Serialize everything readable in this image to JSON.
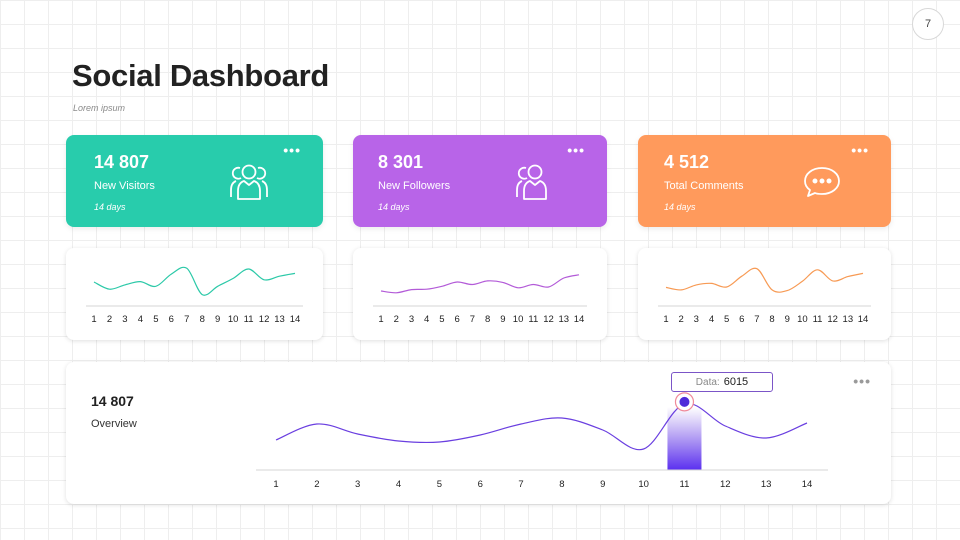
{
  "page_number": "7",
  "title": "Social Dashboard",
  "subtitle": "Lorem ipsum",
  "stat_cards": [
    {
      "value": "14 807",
      "label": "New Visitors",
      "period": "14 days",
      "color": "#28ccac",
      "icon": "users-icon"
    },
    {
      "value": "8 301",
      "label": "New Followers",
      "period": "14 days",
      "color": "#b864e8",
      "icon": "users-icon"
    },
    {
      "value": "4 512",
      "label": "Total Comments",
      "period": "14 days",
      "color": "#ff9a5c",
      "icon": "chat-bubble-icon"
    }
  ],
  "menu_glyph": "•••",
  "overview": {
    "value": "14 807",
    "label": "Overview",
    "tooltip_label": "Data:",
    "tooltip_value": "6015",
    "highlight_index": 11,
    "line_color": "#6a3fe0"
  },
  "chart_data": [
    {
      "type": "line",
      "name": "visitors-sparkline",
      "color": "#2cc9a8",
      "x": [
        1,
        2,
        3,
        4,
        5,
        6,
        7,
        8,
        9,
        10,
        11,
        12,
        13,
        14
      ],
      "values": [
        5,
        3,
        4.2,
        5.1,
        3.8,
        7.2,
        8.8,
        1.5,
        3.8,
        6,
        8.6,
        5.6,
        6.6,
        7.4
      ],
      "ylim": [
        0,
        10
      ]
    },
    {
      "type": "line",
      "name": "followers-sparkline",
      "color": "#b35bd8",
      "x": [
        1,
        2,
        3,
        4,
        5,
        6,
        7,
        8,
        9,
        10,
        11,
        12,
        13,
        14
      ],
      "values": [
        2.5,
        2,
        2.9,
        3,
        3.8,
        5,
        4.3,
        5.3,
        4.9,
        3.4,
        4.3,
        3.6,
        6.1,
        7
      ],
      "ylim": [
        0,
        10
      ]
    },
    {
      "type": "line",
      "name": "comments-sparkline",
      "color": "#f79a54",
      "x": [
        1,
        2,
        3,
        4,
        5,
        6,
        7,
        8,
        9,
        10,
        11,
        12,
        13,
        14
      ],
      "values": [
        3.5,
        2.8,
        4.2,
        4.6,
        3.6,
        6.6,
        8.7,
        2.8,
        2.6,
        5.2,
        8.4,
        5.3,
        6.5,
        7.4
      ],
      "ylim": [
        0,
        10
      ]
    },
    {
      "type": "line",
      "name": "overview",
      "color": "#6a3fe0",
      "x": [
        1,
        2,
        3,
        4,
        5,
        6,
        7,
        8,
        9,
        10,
        11,
        12,
        13,
        14
      ],
      "values": [
        2400,
        4000,
        3000,
        2300,
        2200,
        2900,
        4000,
        4600,
        3400,
        1500,
        6015,
        3800,
        2600,
        4100
      ],
      "ylim": [
        0,
        8000
      ]
    }
  ]
}
